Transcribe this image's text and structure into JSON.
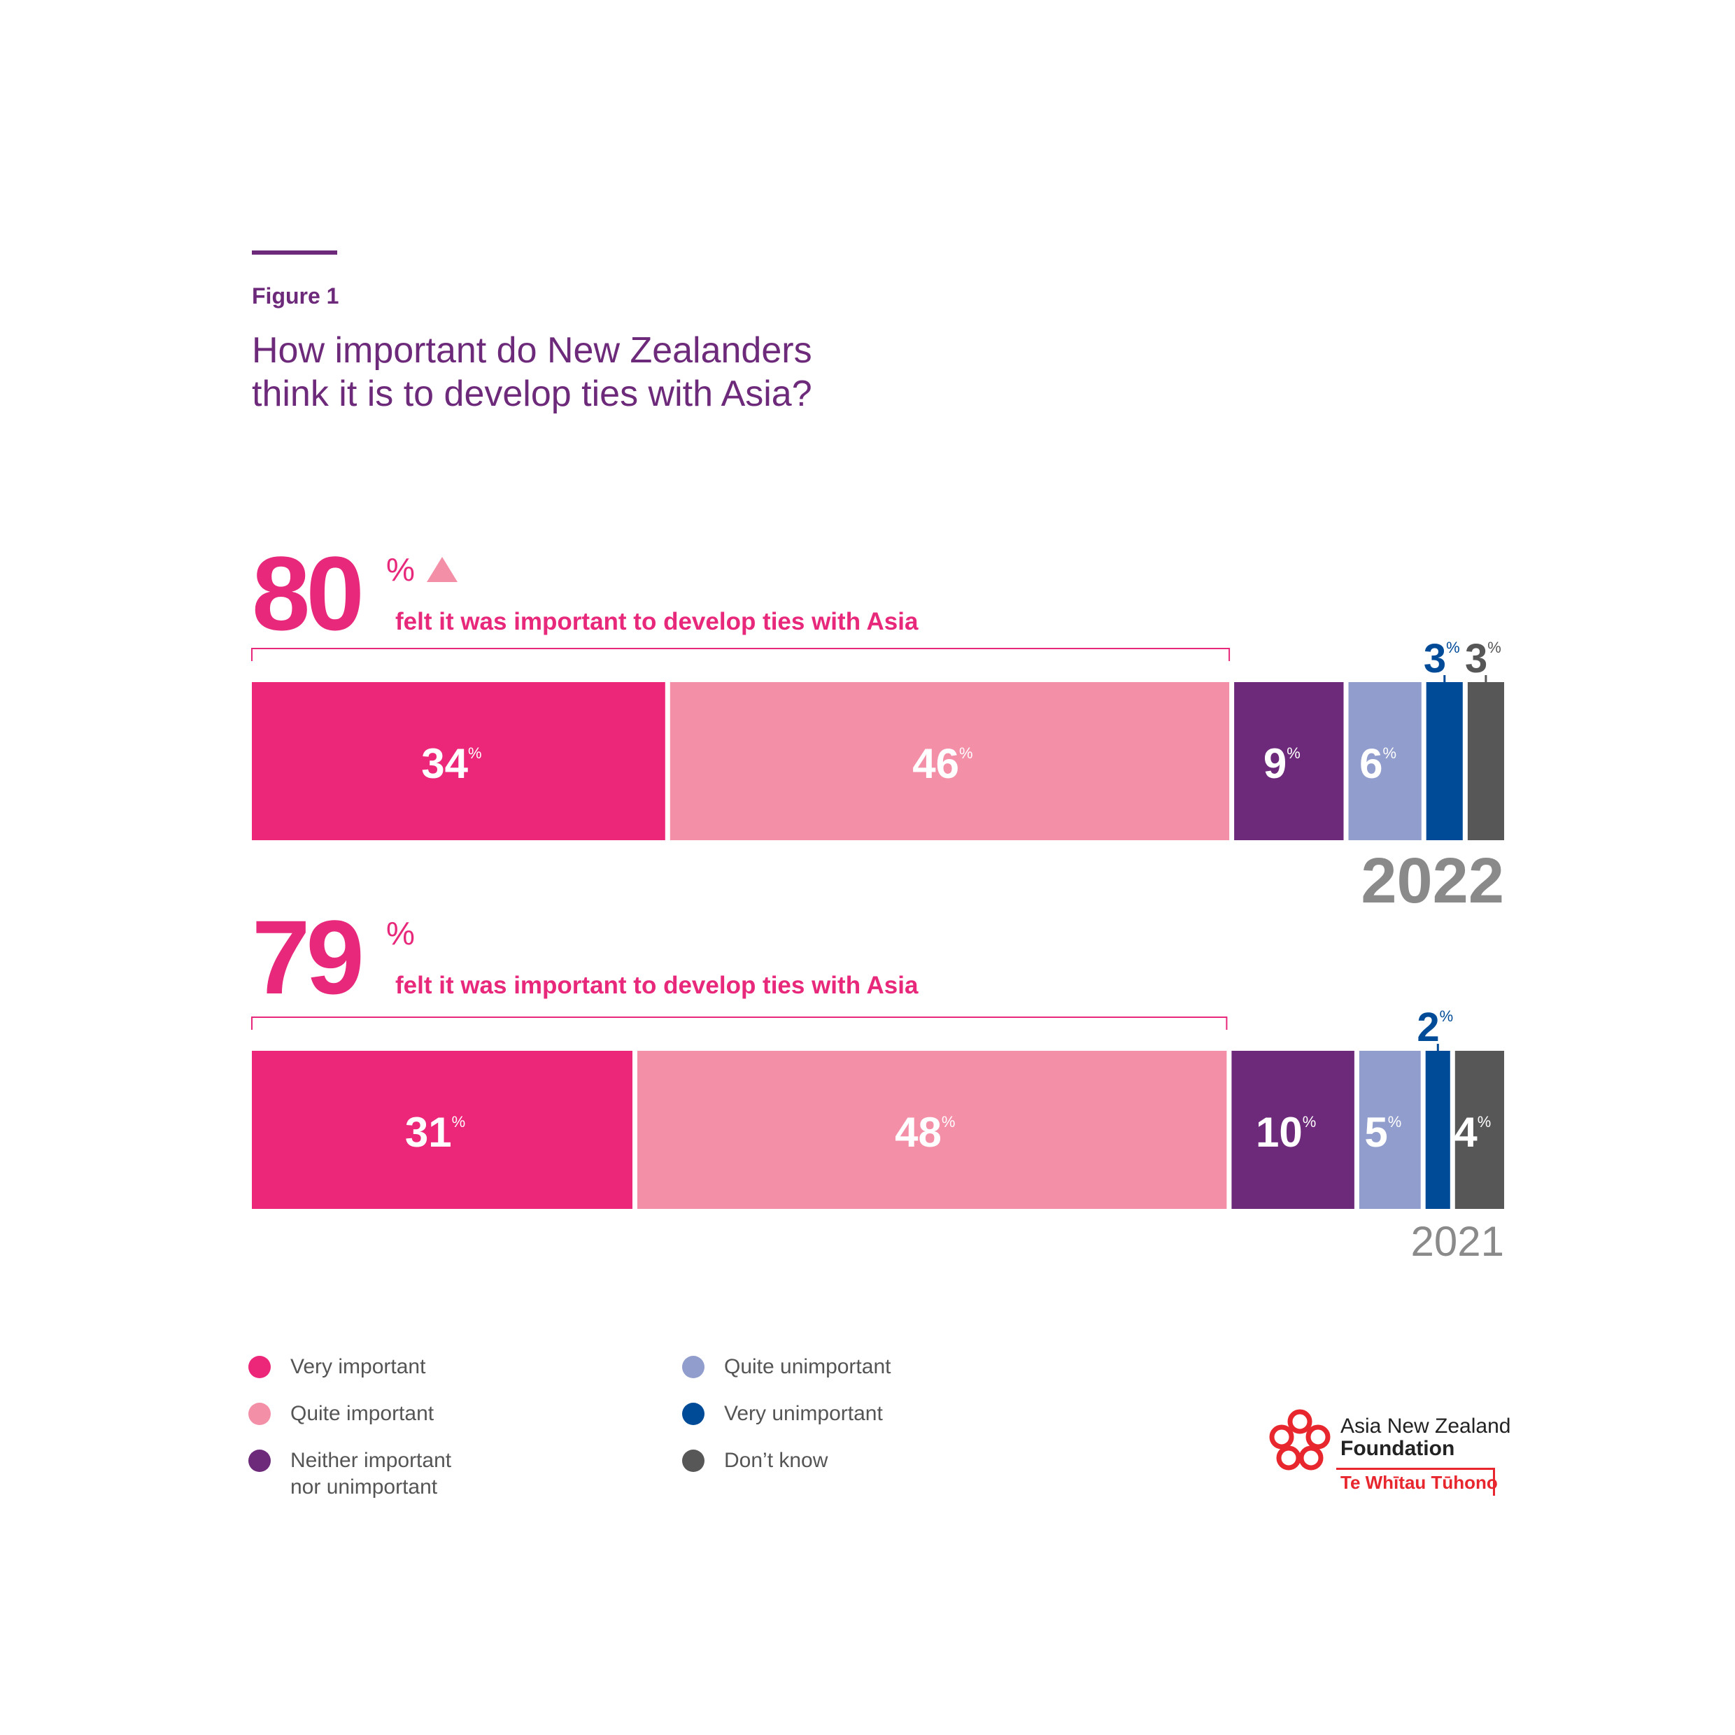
{
  "figure": {
    "label": "Figure 1",
    "title_lines": [
      "How important do New Zealanders",
      "think it is to develop ties with Asia?"
    ]
  },
  "colors": {
    "accent_purple": "#6e2a7a",
    "headline_pink": "#e8287a",
    "very_important": "#ec2679",
    "quite_important": "#f48fa8",
    "neither": "#6e2a7a",
    "quite_unimportant": "#919dcc",
    "very_unimportant": "#004b98",
    "dont_know": "#575757",
    "year_grey": "#8a8a8a"
  },
  "chart_data": {
    "type": "bar",
    "orientation": "horizontal",
    "stacked": true,
    "unit": "%",
    "categories": [
      "Very important",
      "Quite important",
      "Neither important nor unimportant",
      "Quite unimportant",
      "Very unimportant",
      "Don’t know"
    ],
    "series": [
      {
        "name": "2022",
        "values": [
          34,
          46,
          9,
          6,
          3,
          3
        ],
        "headline_value": "80",
        "headline_text": "felt it was important to develop ties with Asia",
        "trend": "up"
      },
      {
        "name": "2021",
        "values": [
          31,
          48,
          10,
          5,
          2,
          4
        ],
        "headline_value": "79",
        "headline_text": "felt it was important to develop ties with Asia"
      }
    ],
    "legend": [
      {
        "label": "Very important",
        "color": "#ec2679"
      },
      {
        "label": "Quite important",
        "color": "#f48fa8"
      },
      {
        "label": "Neither important nor unimportant",
        "color": "#6e2a7a"
      },
      {
        "label": "Quite unimportant",
        "color": "#919dcc"
      },
      {
        "label": "Very unimportant",
        "color": "#004b98"
      },
      {
        "label": "Don’t know",
        "color": "#575757"
      }
    ]
  },
  "logo": {
    "line1": "Asia New Zealand",
    "line2": "Foundation",
    "line3": "Te Whītau Tūhono"
  }
}
